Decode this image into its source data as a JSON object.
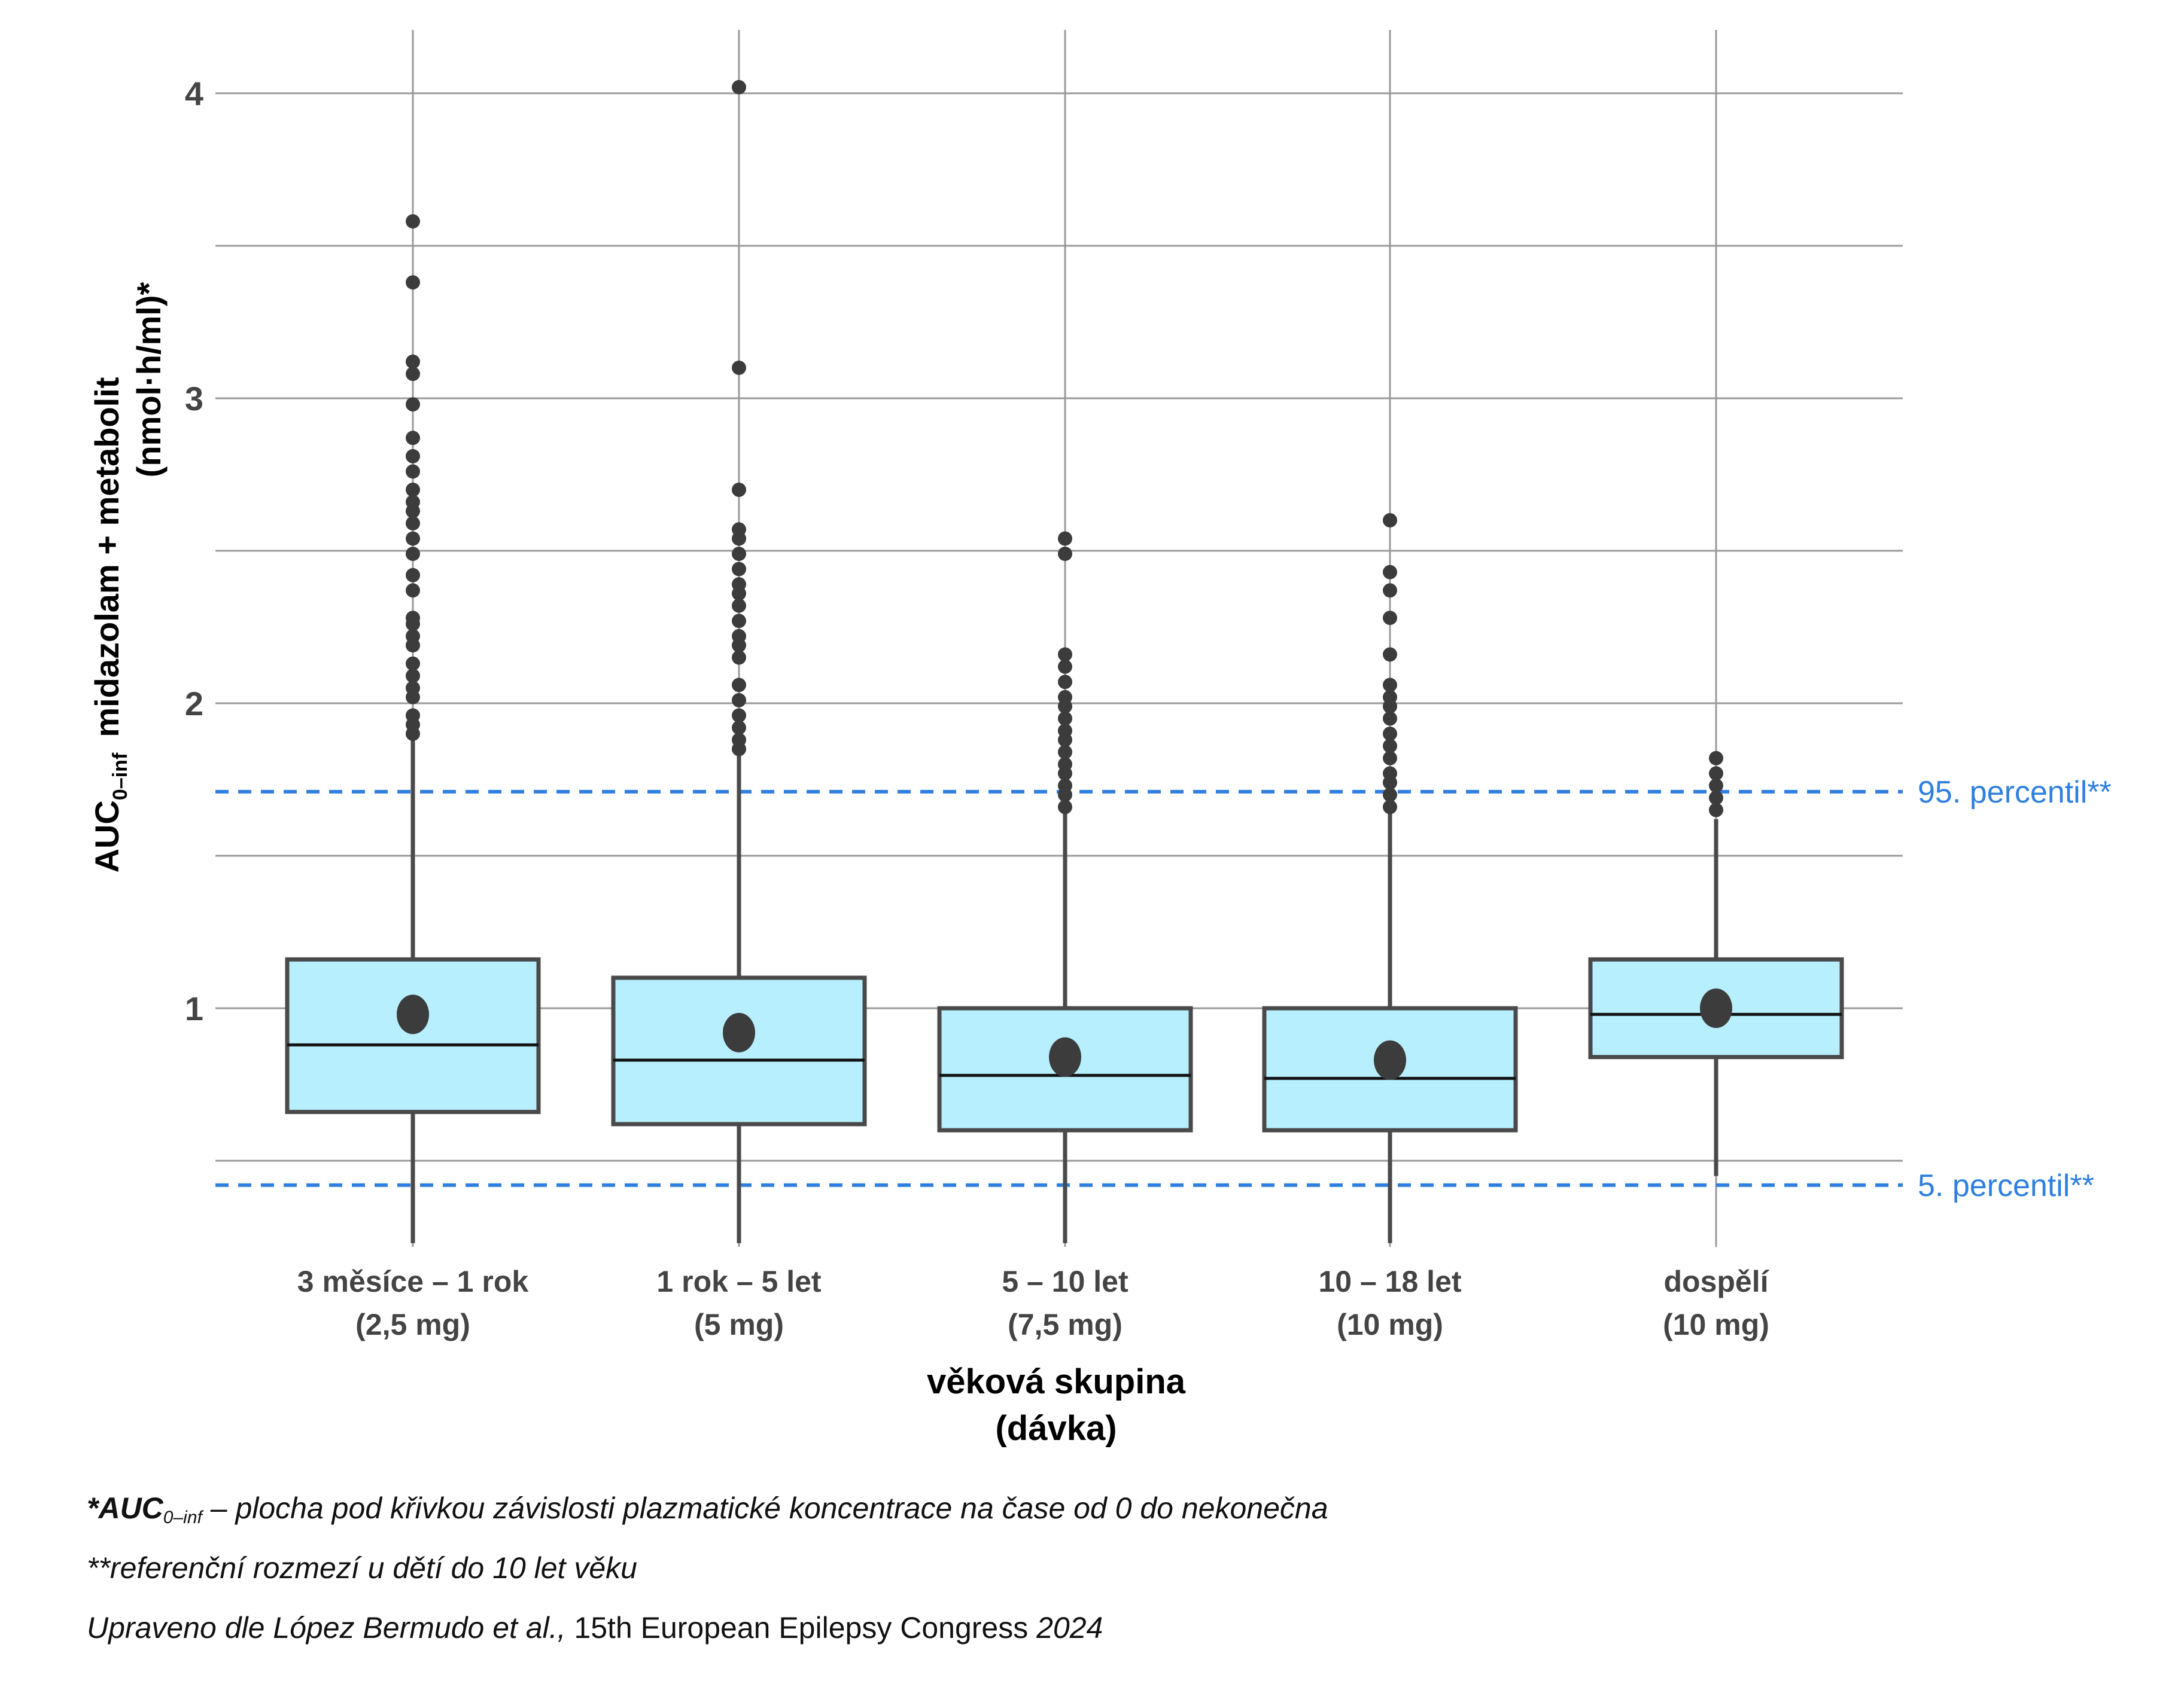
{
  "chart_data": {
    "type": "box",
    "categories": [
      "3 měsíce – 1 rok",
      "1 rok – 5 let",
      "5 – 10 let",
      "10 – 18 let",
      "dospělí"
    ],
    "category_doses": [
      "(2,5 mg)",
      "(5 mg)",
      "(7,5 mg)",
      "(10 mg)",
      "(10 mg)"
    ],
    "xlabel": [
      "věková skupina",
      "(dávka)"
    ],
    "ylabel": {
      "line1_main": "AUC",
      "line1_sub": "0–inf",
      "line1_rest": "midazolam + metabolit",
      "line2": "(nmol·h/ml)*"
    },
    "ylim": [
      0.22,
      4.2
    ],
    "yticks": [
      "1",
      "2",
      "3",
      "4"
    ],
    "grid": true,
    "boxes": [
      {
        "q1": 0.66,
        "median": 0.88,
        "q3": 1.16,
        "mean": 0.98,
        "whisker_low": 0.23,
        "whisker_high": 1.88,
        "outliers": [
          1.9,
          1.93,
          1.96,
          2.02,
          2.05,
          2.09,
          2.13,
          2.19,
          2.22,
          2.26,
          2.28,
          2.37,
          2.42,
          2.49,
          2.54,
          2.59,
          2.63,
          2.66,
          2.7,
          2.76,
          2.81,
          2.87,
          2.98,
          3.08,
          3.12,
          3.38,
          3.58
        ]
      },
      {
        "q1": 0.62,
        "median": 0.83,
        "q3": 1.1,
        "mean": 0.92,
        "whisker_low": 0.23,
        "whisker_high": 1.83,
        "outliers": [
          1.85,
          1.88,
          1.92,
          1.96,
          2.01,
          2.06,
          2.15,
          2.19,
          2.22,
          2.27,
          2.32,
          2.36,
          2.39,
          2.44,
          2.49,
          2.54,
          2.57,
          2.7,
          3.1,
          4.02
        ]
      },
      {
        "q1": 0.6,
        "median": 0.78,
        "q3": 1.0,
        "mean": 0.84,
        "whisker_low": 0.23,
        "whisker_high": 1.64,
        "outliers": [
          1.66,
          1.7,
          1.73,
          1.77,
          1.8,
          1.84,
          1.88,
          1.91,
          1.95,
          1.99,
          2.02,
          2.07,
          2.12,
          2.16,
          2.49,
          2.54
        ]
      },
      {
        "q1": 0.6,
        "median": 0.77,
        "q3": 1.0,
        "mean": 0.83,
        "whisker_low": 0.23,
        "whisker_high": 1.64,
        "outliers": [
          1.66,
          1.7,
          1.74,
          1.77,
          1.82,
          1.86,
          1.9,
          1.95,
          1.99,
          2.02,
          2.06,
          2.16,
          2.28,
          2.37,
          2.43,
          2.6
        ]
      },
      {
        "q1": 0.84,
        "median": 0.98,
        "q3": 1.16,
        "mean": 1.0,
        "whisker_low": 0.45,
        "whisker_high": 1.62,
        "outliers": [
          1.65,
          1.69,
          1.73,
          1.77,
          1.82
        ]
      }
    ],
    "reference_lines": [
      {
        "value": 1.71,
        "label": "95. percentil**"
      },
      {
        "value": 0.42,
        "label": "5. percentil**"
      }
    ]
  },
  "colors": {
    "box_fill": "#b7efff",
    "box_stroke": "#4a4a4a",
    "grid": "#9a9a9a",
    "reference": "#2f7fe0",
    "points": "#3c3c3c"
  },
  "notes": {
    "line1_prefix": "*AUC",
    "line1_sub": "0–inf",
    "line1_text": " – plocha pod křivkou závislosti plazmatické koncentrace na čase od 0 do nekonečna",
    "line2": "**referenční rozmezí u dětí do 10 let věku",
    "line3_a": "Upraveno dle López Bermudo et al.,",
    "line3_b": " 15th European Epilepsy Congress ",
    "line3_c": "2024"
  }
}
